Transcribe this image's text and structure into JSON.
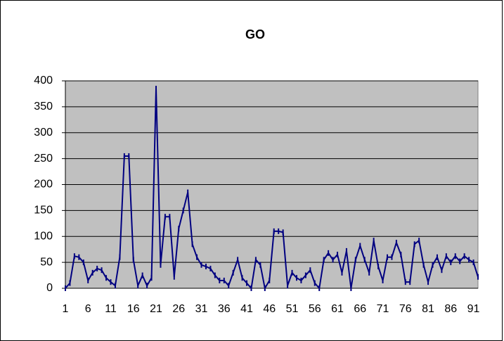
{
  "chart_data": {
    "type": "line",
    "title": "GO",
    "categories": [
      "1",
      null,
      null,
      null,
      null,
      "6",
      null,
      null,
      null,
      null,
      "11",
      null,
      null,
      null,
      null,
      "16",
      null,
      null,
      null,
      null,
      "21",
      null,
      null,
      null,
      null,
      "26",
      null,
      null,
      null,
      null,
      "31",
      null,
      null,
      null,
      null,
      "36",
      null,
      null,
      null,
      null,
      "41",
      null,
      null,
      null,
      null,
      "46",
      null,
      null,
      null,
      null,
      "51",
      null,
      null,
      null,
      null,
      "56",
      null,
      null,
      null,
      null,
      "61",
      null,
      null,
      null,
      null,
      "66",
      null,
      null,
      null,
      null,
      "71",
      null,
      null,
      null,
      null,
      "76",
      null,
      null,
      null,
      null,
      "81",
      null,
      null,
      null,
      null,
      "86",
      null,
      null,
      null,
      null,
      "91",
      null
    ],
    "series": [
      {
        "color": "#000080",
        "values": [
          0,
          10,
          62,
          60,
          50,
          15,
          30,
          38,
          35,
          20,
          12,
          5,
          60,
          255,
          255,
          55,
          5,
          25,
          5,
          20,
          385,
          45,
          138,
          138,
          22,
          115,
          150,
          185,
          85,
          60,
          45,
          42,
          38,
          25,
          15,
          15,
          5,
          30,
          55,
          20,
          10,
          0,
          55,
          45,
          0,
          15,
          110,
          110,
          108,
          5,
          30,
          20,
          15,
          25,
          35,
          10,
          0,
          55,
          68,
          55,
          65,
          30,
          72,
          0,
          55,
          82,
          55,
          30,
          92,
          42,
          15,
          60,
          60,
          88,
          65,
          12,
          12,
          85,
          92,
          45,
          12,
          45,
          60,
          35,
          62,
          50,
          62,
          52,
          62,
          55,
          50,
          22
        ]
      }
    ],
    "ylim": [
      0,
      400
    ],
    "yticks": [
      0,
      50,
      100,
      150,
      200,
      250,
      300,
      350,
      400
    ],
    "grid": true,
    "background": "#c0c0c0"
  }
}
